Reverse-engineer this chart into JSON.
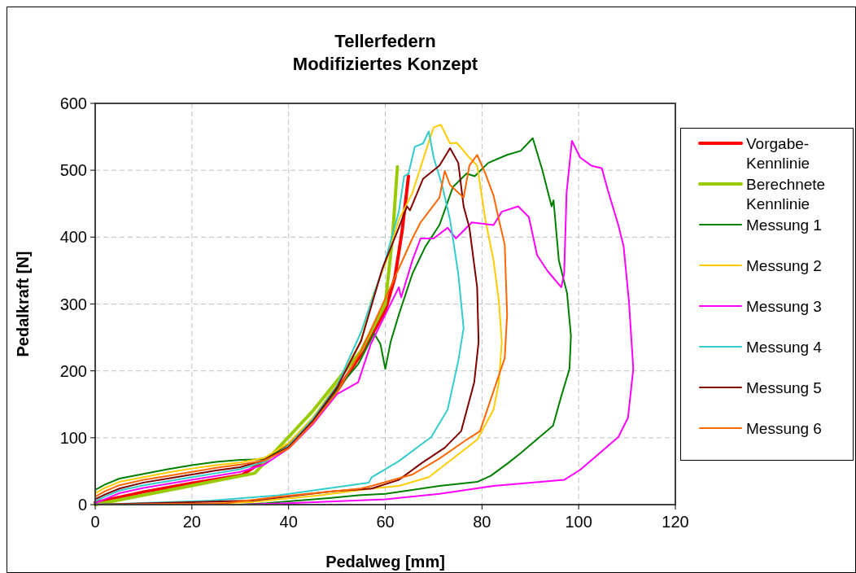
{
  "chart_data": {
    "type": "line",
    "title": "Tellerfedern\nModifiziertes Konzept",
    "xlabel": "Pedalweg [mm]",
    "ylabel": "Pedalkraft [N]",
    "xlim": [
      0,
      120
    ],
    "xticks": [
      0,
      20,
      40,
      60,
      80,
      100,
      120
    ],
    "ylim": [
      0,
      600
    ],
    "yticks": [
      0,
      100,
      200,
      300,
      400,
      500,
      600
    ],
    "grid": true,
    "legend": "right",
    "series": [
      {
        "name": "Vorgabe-Kennlinie",
        "color": "#ff0000",
        "x": [
          0,
          10,
          20,
          30.3,
          35,
          40,
          45,
          50,
          55,
          60,
          62,
          63.5,
          64.8
        ],
        "values": [
          3,
          19,
          32,
          44,
          66,
          90,
          125,
          170,
          225,
          290,
          340,
          410,
          491
        ]
      },
      {
        "name": "Berechnete Kennlinie",
        "color": "#99cc00",
        "x": [
          0,
          33,
          45,
          55,
          60,
          61.5,
          62.5
        ],
        "values": [
          0,
          47,
          140,
          230,
          300,
          400,
          505
        ]
      },
      {
        "name": "Messung 1",
        "color": "#008000",
        "x": [
          0,
          2,
          5,
          10,
          15,
          20,
          25,
          30,
          35,
          40,
          45,
          50,
          54.4,
          57.7,
          59,
          60,
          61.1,
          62.8,
          65.6,
          68.3,
          71.2,
          74,
          76.8,
          78.5,
          81.3,
          85.2,
          88,
          90.5,
          92.5,
          94.4,
          94.8,
          95.9,
          97.6,
          98.4,
          98.1,
          96.4,
          94.7,
          91.9,
          88,
          85.2,
          81.8,
          79,
          71.2,
          60,
          54.4,
          48.8,
          35.3,
          30,
          0
        ],
        "values": [
          22,
          30,
          39,
          46,
          53,
          59,
          64,
          67,
          68,
          88,
          125,
          172,
          210,
          256,
          240,
          203,
          243,
          284,
          345,
          386,
          418,
          475,
          495,
          491,
          511,
          523,
          529,
          548,
          500,
          446,
          455,
          365,
          316,
          252,
          203,
          162,
          118,
          101,
          77,
          61,
          43,
          34,
          28,
          16,
          14,
          10,
          2,
          0,
          0
        ]
      },
      {
        "name": "Messung 2",
        "color": "#ffcc00",
        "x": [
          0,
          2,
          5,
          10,
          15,
          20,
          25,
          30,
          35,
          40,
          45,
          50,
          55,
          57.2,
          60,
          62.8,
          65.6,
          68.3,
          70,
          71.5,
          73.4,
          74.8,
          77.4,
          79,
          80.7,
          82.4,
          83.5,
          84.1,
          83.5,
          82.4,
          79,
          74,
          69,
          62.8,
          57.2,
          46.5,
          32.5,
          20,
          0
        ],
        "values": [
          17,
          25,
          34,
          41,
          48,
          54,
          59,
          63,
          70,
          92,
          130,
          180,
          245,
          308,
          360,
          426,
          466,
          527,
          564,
          568,
          540,
          541,
          519,
          507,
          426,
          365,
          304,
          243,
          183,
          142,
          97,
          69,
          41,
          28,
          24,
          14,
          4,
          0,
          0
        ]
      },
      {
        "name": "Messung 3",
        "color": "#ff00ff",
        "x": [
          0,
          2,
          5,
          10,
          15,
          20,
          25,
          30,
          35,
          40,
          45,
          50,
          54.4,
          57,
          60,
          62.8,
          63.3,
          65.6,
          67.3,
          70,
          72.9,
          74.6,
          77.9,
          82.4,
          84.1,
          87.5,
          89.7,
          91.4,
          93.6,
          96.4,
          97,
          97.5,
          98.6,
          100.3,
          102.6,
          104.8,
          106,
          108.2,
          109.3,
          110.4,
          111.3,
          110.2,
          108.2,
          103.7,
          100.3,
          97,
          90.2,
          82.4,
          71.2,
          60,
          40,
          30,
          0
        ],
        "values": [
          2,
          8,
          17,
          25,
          31,
          37,
          43,
          49,
          60,
          84,
          120,
          165,
          183,
          240,
          284,
          325,
          310,
          365,
          398,
          398,
          414,
          398,
          422,
          418,
          438,
          446,
          430,
          373,
          349,
          325,
          345,
          466,
          544,
          519,
          507,
          503,
          471,
          418,
          386,
          304,
          203,
          130,
          101,
          73,
          52,
          37,
          33,
          28,
          16,
          8,
          2,
          0,
          0
        ]
      },
      {
        "name": "Messung 4",
        "color": "#33cccc",
        "x": [
          0,
          2,
          5,
          10,
          15,
          20,
          25,
          30,
          35,
          40,
          45,
          50,
          55,
          60,
          62.8,
          63.9,
          64.8,
          66.1,
          67.8,
          69,
          70,
          71.7,
          73.4,
          75.1,
          76.2,
          75.1,
          72.9,
          69.5,
          62.8,
          57.2,
          56.6,
          38,
          24,
          0
        ],
        "values": [
          5,
          12,
          21,
          29,
          35,
          41,
          47,
          53,
          64,
          88,
          128,
          178,
          258,
          365,
          438,
          491,
          495,
          535,
          540,
          558,
          519,
          479,
          426,
          345,
          264,
          215,
          142,
          101,
          65,
          41,
          33,
          14,
          6,
          0
        ]
      },
      {
        "name": "Messung 5",
        "color": "#800000",
        "x": [
          0,
          2,
          5,
          10,
          15,
          20,
          25,
          30,
          35,
          40,
          45,
          50,
          55,
          59.4,
          62.8,
          64.5,
          65.1,
          67.8,
          71.2,
          72.9,
          73.4,
          75.1,
          76.2,
          77.4,
          79,
          79.3,
          78.4,
          75.7,
          72.3,
          67.3,
          62.8,
          57.2,
          49.3,
          32.5,
          0
        ],
        "values": [
          8,
          15,
          24,
          33,
          39,
          45,
          51,
          56,
          67,
          86,
          125,
          175,
          245,
          353,
          414,
          446,
          440,
          487,
          507,
          527,
          533,
          511,
          446,
          414,
          325,
          243,
          183,
          110,
          85,
          61,
          37,
          24,
          20,
          6,
          0
        ]
      },
      {
        "name": "Messung 6",
        "color": "#ff6600",
        "x": [
          0,
          2,
          5,
          10,
          15,
          20,
          25,
          30,
          35,
          40,
          45,
          50,
          55,
          60,
          65.6,
          67.3,
          71.2,
          72.3,
          73.4,
          76.2,
          77.4,
          79,
          80.7,
          82.4,
          83.5,
          84.7,
          85.2,
          84.7,
          82.4,
          79.6,
          76.8,
          71.2,
          65.6,
          57.2,
          54.9,
          38,
          27,
          0
        ],
        "values": [
          12,
          20,
          29,
          37,
          43,
          49,
          55,
          60,
          66,
          84,
          122,
          168,
          230,
          308,
          398,
          422,
          459,
          499,
          478,
          459,
          507,
          523,
          495,
          462,
          426,
          389,
          284,
          219,
          170,
          110,
          97,
          69,
          45,
          28,
          24,
          12,
          2,
          0
        ]
      }
    ]
  }
}
